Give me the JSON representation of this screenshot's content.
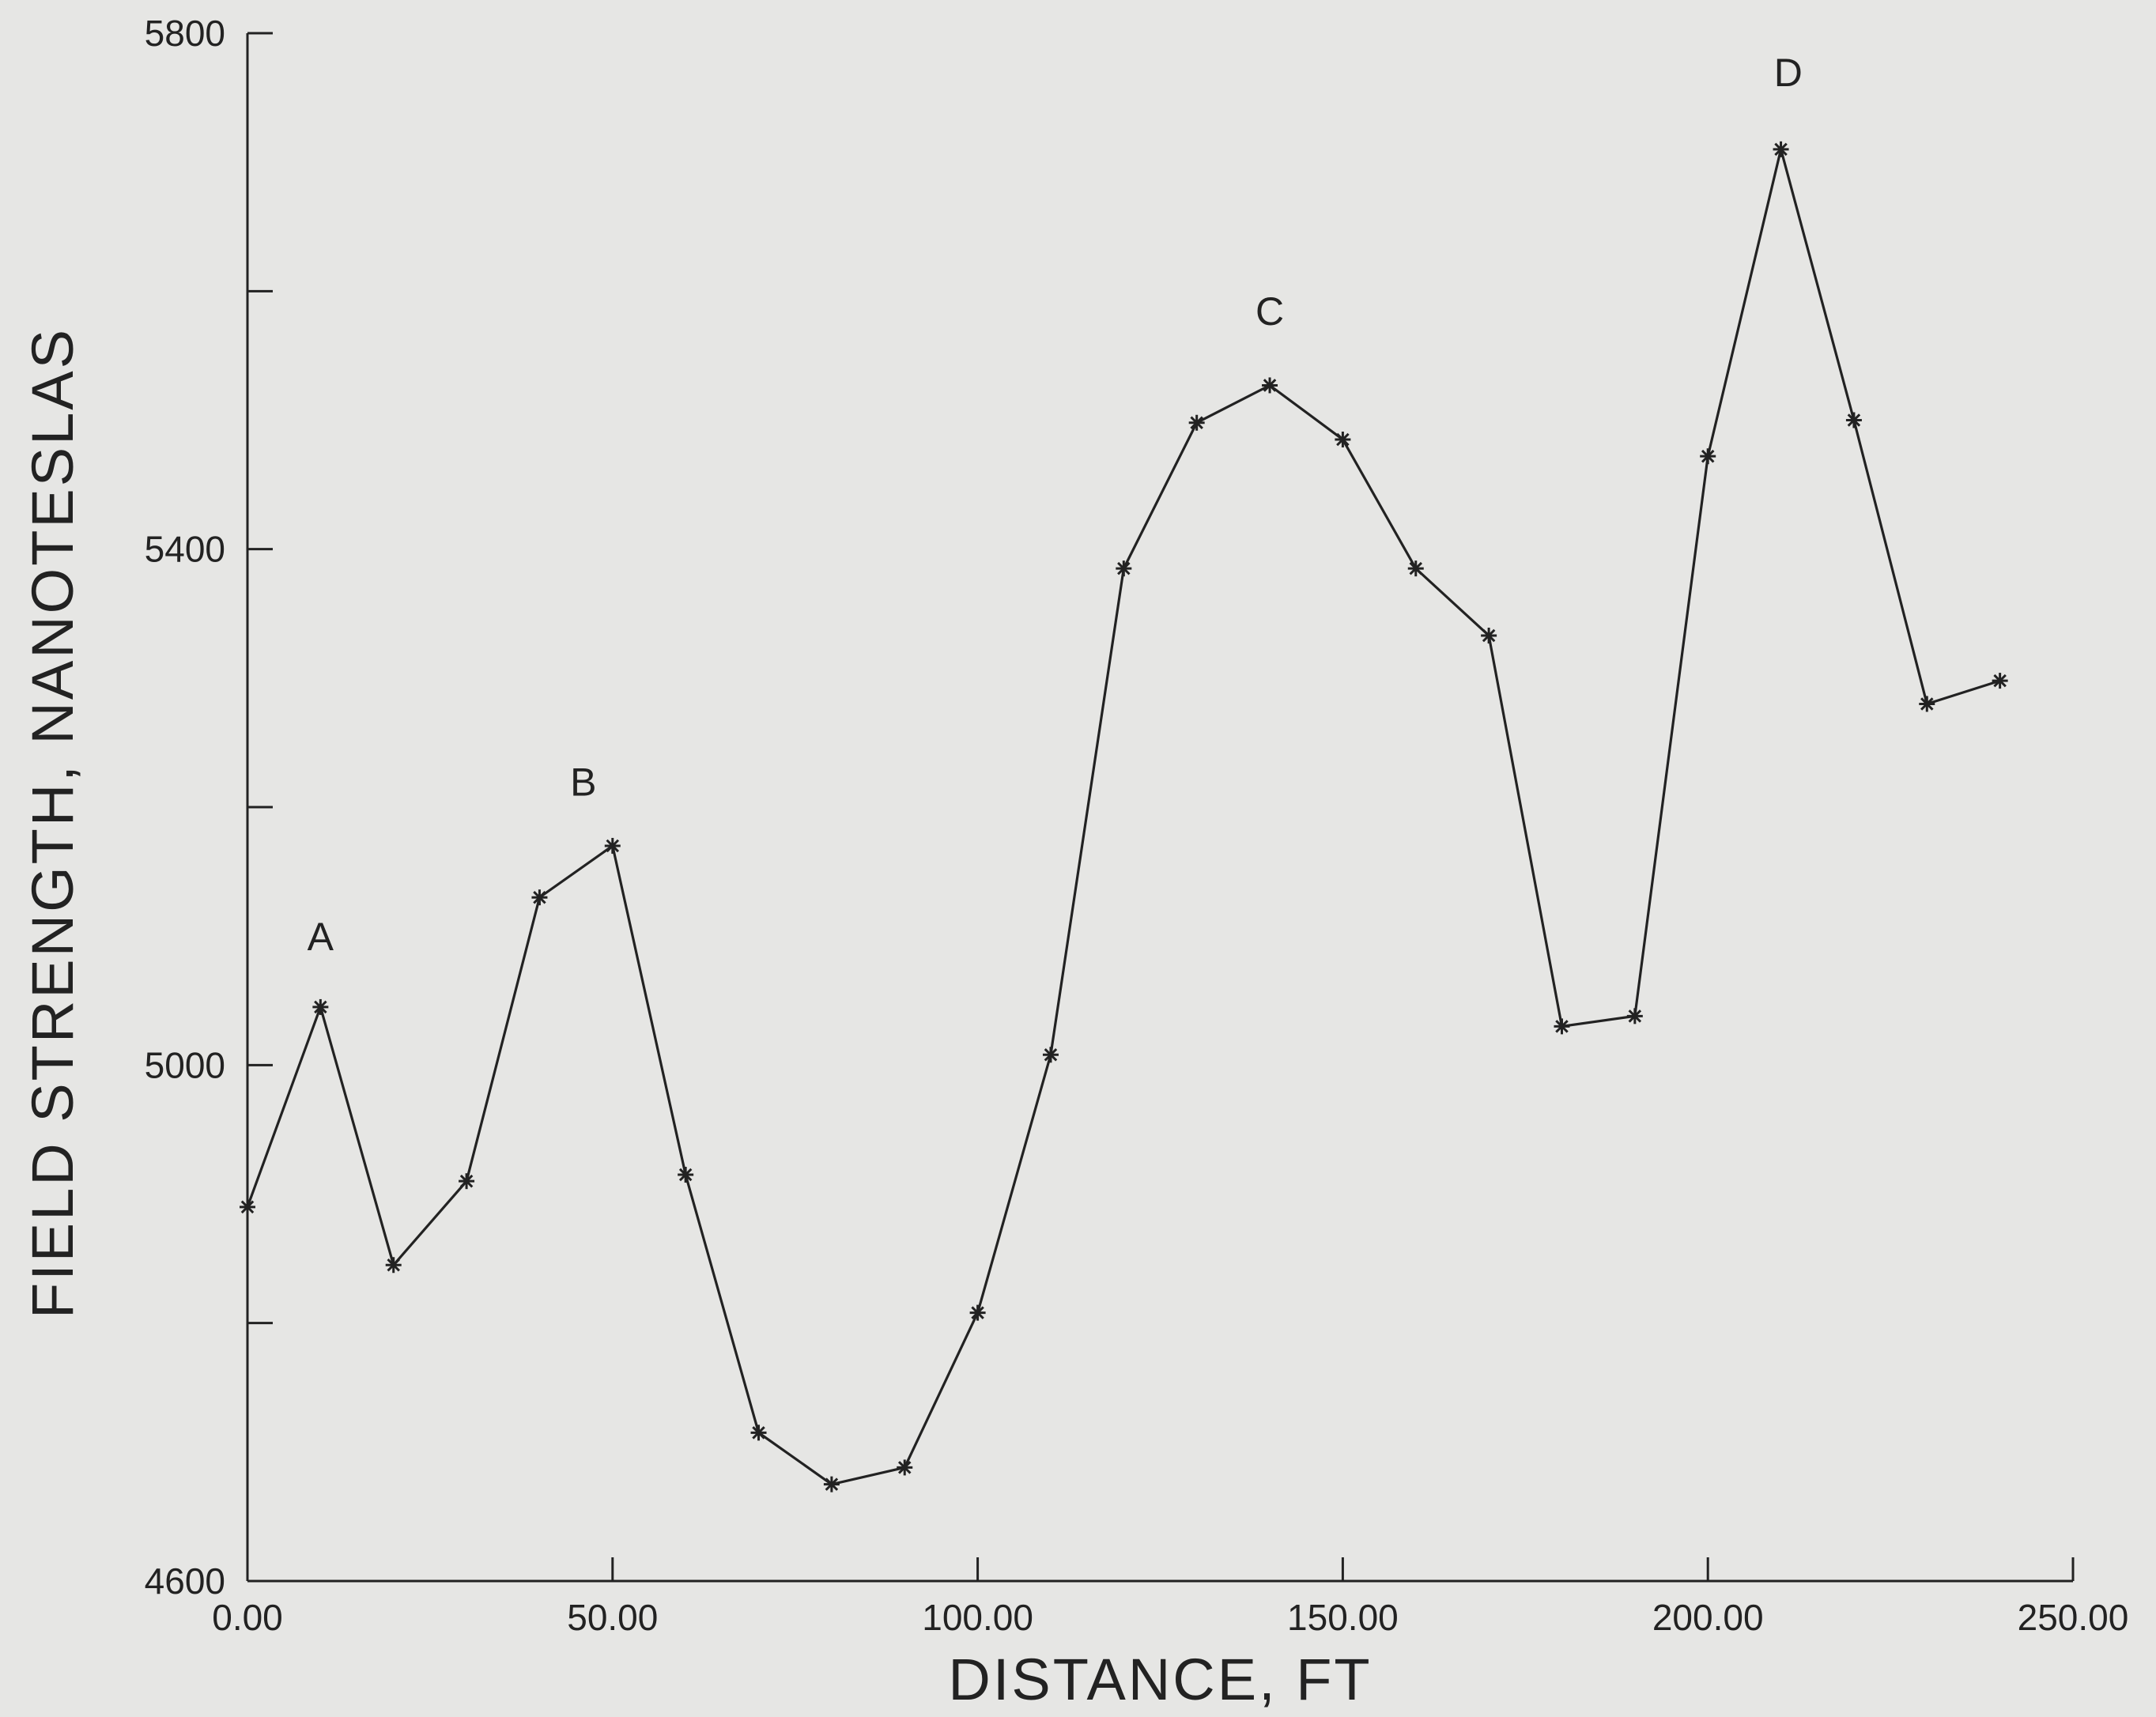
{
  "chart_data": {
    "type": "line",
    "title": "",
    "xlabel": "DISTANCE, FT",
    "ylabel": "FIELD STRENGTH, NANOTESLAS",
    "xlim": [
      0,
      250
    ],
    "ylim": [
      4600,
      5800
    ],
    "x_ticks": [
      0,
      50,
      100,
      150,
      200,
      250
    ],
    "x_tick_labels": [
      "0.00",
      "50.00",
      "100.00",
      "150.00",
      "200.00",
      "250.00"
    ],
    "y_ticks": [
      4600,
      4800,
      5000,
      5200,
      5400,
      5600,
      5800
    ],
    "y_tick_labels": [
      "4600",
      "",
      "5000",
      "",
      "5400",
      "",
      "5800"
    ],
    "grid": false,
    "series": [
      {
        "x": [
          0,
          10,
          20,
          30,
          40,
          50,
          60,
          70,
          80,
          90,
          100,
          110,
          120,
          130,
          140,
          150,
          160,
          170,
          180,
          190,
          200,
          210,
          220,
          230,
          240
        ],
        "y": [
          4890,
          5045,
          4845,
          4910,
          5130,
          5170,
          4915,
          4715,
          4675,
          4688,
          4808,
          5008,
          5385,
          5498,
          5527,
          5485,
          5385,
          5333,
          5030,
          5038,
          5472,
          5710,
          5500,
          5280,
          5298
        ]
      }
    ],
    "annotations": [
      {
        "text": "A",
        "x": 10,
        "y": 5100
      },
      {
        "text": "B",
        "x": 46,
        "y": 5220
      },
      {
        "text": "C",
        "x": 140,
        "y": 5585
      },
      {
        "text": "D",
        "x": 211,
        "y": 5770
      }
    ]
  }
}
